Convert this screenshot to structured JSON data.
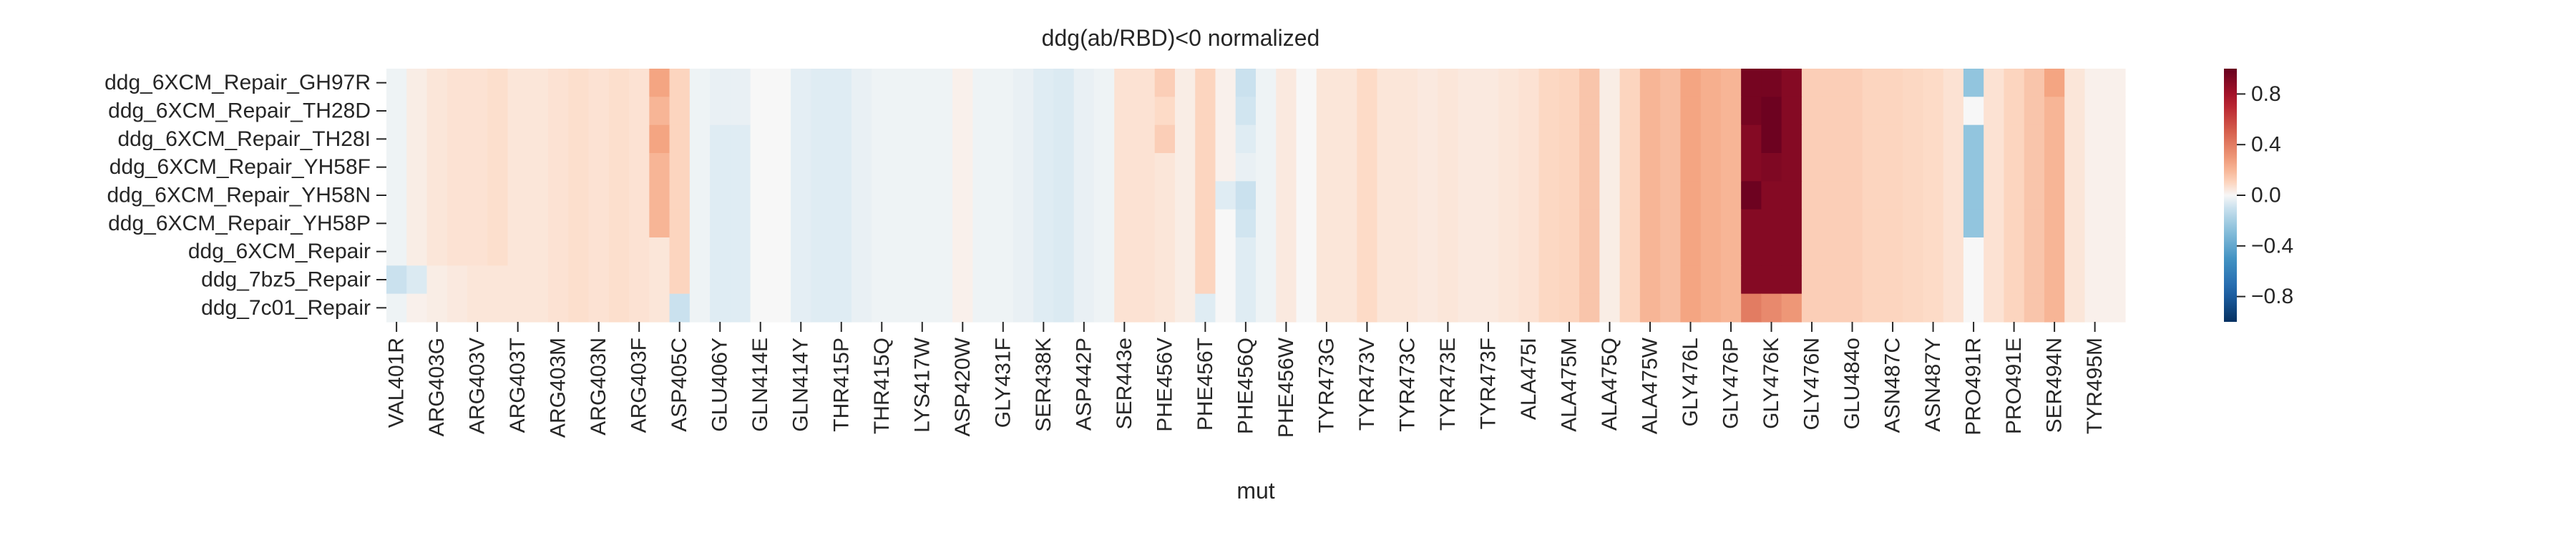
{
  "chart_data": {
    "type": "heatmap",
    "title": "ddg(ab/RBD)<0 normalized",
    "xlabel": "mut",
    "ylabel": "",
    "rows": [
      "ddg_6XCM_Repair_GH97R",
      "ddg_6XCM_Repair_TH28D",
      "ddg_6XCM_Repair_TH28I",
      "ddg_6XCM_Repair_YH58F",
      "ddg_6XCM_Repair_YH58N",
      "ddg_6XCM_Repair_YH58P",
      "ddg_6XCM_Repair",
      "ddg_7bz5_Repair",
      "ddg_7c01_Repair"
    ],
    "x_tick_labels": [
      "VAL401R",
      "ARG403G",
      "ARG403V",
      "ARG403T",
      "ARG403M",
      "ARG403N",
      "ARG403F",
      "ASP405C",
      "GLU406Y",
      "GLN414E",
      "GLN414Y",
      "THR415P",
      "THR415Q",
      "LYS417W",
      "ASP420W",
      "GLY431F",
      "SER438K",
      "ASP442P",
      "SER443e",
      "PHE456V",
      "PHE456T",
      "PHE456Q",
      "PHE456W",
      "TYR473G",
      "TYR473V",
      "TYR473C",
      "TYR473E",
      "TYR473F",
      "ALA475I",
      "ALA475M",
      "ALA475Q",
      "ALA475W",
      "GLY476L",
      "GLY476P",
      "GLY476K",
      "GLY476N",
      "GLU484o",
      "ASN487C",
      "ASN487Y",
      "PRO491R",
      "PRO491E",
      "SER494N",
      "TYR495M"
    ],
    "n_columns": 86,
    "tick_every": 2,
    "colorbar": {
      "cmap": "RdBu_r",
      "vmin": -1.0,
      "vmax": 1.0,
      "ticks": [
        0.8,
        0.4,
        0.0,
        -0.4,
        -0.8
      ],
      "tick_labels": [
        "0.8",
        "0.4",
        "0.0",
        "−0.4",
        "−0.8"
      ]
    },
    "values": [
      [
        -0.02,
        0.03,
        0.05,
        0.06,
        0.06,
        0.07,
        0.05,
        0.05,
        0.06,
        0.07,
        0.06,
        0.07,
        0.06,
        0.25,
        0.1,
        -0.02,
        -0.03,
        -0.03,
        0.0,
        0.0,
        -0.04,
        -0.05,
        -0.05,
        -0.03,
        -0.02,
        -0.02,
        -0.02,
        -0.02,
        0.02,
        -0.02,
        -0.02,
        -0.03,
        -0.05,
        -0.06,
        -0.03,
        -0.02,
        0.06,
        0.06,
        0.12,
        0.03,
        0.1,
        0.02,
        -0.1,
        -0.02,
        0.04,
        0.0,
        0.05,
        0.05,
        0.08,
        0.05,
        0.05,
        0.04,
        0.05,
        0.04,
        0.04,
        0.05,
        0.06,
        0.09,
        0.1,
        0.15,
        0.03,
        0.1,
        0.2,
        0.17,
        0.25,
        0.22,
        0.2,
        0.95,
        0.95,
        0.9,
        0.12,
        0.12,
        0.12,
        0.1,
        0.1,
        0.09,
        0.08,
        0.06,
        -0.25,
        0.06,
        0.1,
        0.15,
        0.25,
        0.05,
        0.02,
        0.02
      ],
      [
        -0.02,
        0.03,
        0.05,
        0.06,
        0.06,
        0.07,
        0.05,
        0.05,
        0.06,
        0.07,
        0.06,
        0.07,
        0.06,
        0.2,
        0.1,
        -0.02,
        -0.03,
        -0.03,
        0.0,
        0.0,
        -0.04,
        -0.05,
        -0.05,
        -0.03,
        -0.02,
        -0.02,
        -0.02,
        -0.02,
        0.02,
        -0.02,
        -0.02,
        -0.03,
        -0.05,
        -0.06,
        -0.03,
        -0.02,
        0.06,
        0.06,
        0.08,
        0.03,
        0.1,
        0.02,
        -0.08,
        -0.02,
        0.04,
        0.0,
        0.05,
        0.05,
        0.08,
        0.05,
        0.05,
        0.04,
        0.05,
        0.04,
        0.04,
        0.05,
        0.06,
        0.09,
        0.1,
        0.15,
        0.03,
        0.1,
        0.2,
        0.17,
        0.25,
        0.22,
        0.2,
        0.95,
        0.98,
        0.9,
        0.12,
        0.12,
        0.12,
        0.1,
        0.1,
        0.09,
        0.08,
        0.06,
        0.0,
        0.06,
        0.1,
        0.15,
        0.2,
        0.05,
        0.02,
        0.02
      ],
      [
        -0.02,
        0.03,
        0.05,
        0.06,
        0.06,
        0.07,
        0.05,
        0.05,
        0.06,
        0.07,
        0.06,
        0.07,
        0.06,
        0.25,
        0.1,
        -0.02,
        -0.05,
        -0.05,
        0.0,
        0.0,
        -0.04,
        -0.05,
        -0.05,
        -0.03,
        -0.02,
        -0.02,
        -0.02,
        -0.02,
        0.02,
        -0.02,
        -0.02,
        -0.03,
        -0.05,
        -0.06,
        -0.03,
        -0.02,
        0.06,
        0.06,
        0.12,
        0.03,
        0.1,
        0.02,
        -0.05,
        -0.02,
        0.04,
        0.0,
        0.05,
        0.05,
        0.08,
        0.05,
        0.05,
        0.04,
        0.05,
        0.04,
        0.04,
        0.05,
        0.06,
        0.09,
        0.1,
        0.15,
        0.03,
        0.1,
        0.2,
        0.17,
        0.25,
        0.22,
        0.2,
        0.9,
        0.98,
        0.9,
        0.12,
        0.12,
        0.12,
        0.1,
        0.1,
        0.09,
        0.08,
        0.06,
        -0.25,
        0.06,
        0.1,
        0.15,
        0.2,
        0.05,
        0.02,
        0.02
      ],
      [
        -0.02,
        0.03,
        0.05,
        0.06,
        0.06,
        0.07,
        0.05,
        0.05,
        0.06,
        0.07,
        0.06,
        0.07,
        0.06,
        0.2,
        0.1,
        -0.02,
        -0.05,
        -0.05,
        0.0,
        0.0,
        -0.04,
        -0.05,
        -0.05,
        -0.03,
        -0.02,
        -0.02,
        -0.02,
        -0.02,
        0.02,
        -0.02,
        -0.02,
        -0.03,
        -0.05,
        -0.06,
        -0.03,
        -0.02,
        0.06,
        0.06,
        0.05,
        0.03,
        0.1,
        0.02,
        -0.03,
        -0.02,
        0.04,
        0.0,
        0.05,
        0.05,
        0.08,
        0.05,
        0.05,
        0.04,
        0.05,
        0.04,
        0.04,
        0.05,
        0.06,
        0.09,
        0.1,
        0.15,
        0.03,
        0.1,
        0.2,
        0.17,
        0.25,
        0.22,
        0.2,
        0.9,
        0.92,
        0.9,
        0.12,
        0.12,
        0.12,
        0.1,
        0.1,
        0.09,
        0.08,
        0.06,
        -0.25,
        0.06,
        0.1,
        0.15,
        0.2,
        0.05,
        0.02,
        0.02
      ],
      [
        -0.02,
        0.03,
        0.05,
        0.06,
        0.06,
        0.07,
        0.05,
        0.05,
        0.06,
        0.07,
        0.06,
        0.07,
        0.06,
        0.2,
        0.1,
        -0.02,
        -0.05,
        -0.05,
        0.0,
        0.0,
        -0.04,
        -0.05,
        -0.05,
        -0.03,
        -0.02,
        -0.02,
        -0.02,
        -0.02,
        0.02,
        -0.02,
        -0.02,
        -0.03,
        -0.05,
        -0.06,
        -0.03,
        -0.02,
        0.06,
        0.06,
        0.05,
        0.03,
        0.1,
        -0.05,
        -0.1,
        -0.02,
        0.04,
        0.0,
        0.05,
        0.05,
        0.08,
        0.05,
        0.05,
        0.04,
        0.05,
        0.04,
        0.04,
        0.05,
        0.06,
        0.09,
        0.1,
        0.15,
        0.03,
        0.1,
        0.2,
        0.17,
        0.25,
        0.22,
        0.2,
        0.98,
        0.9,
        0.9,
        0.12,
        0.12,
        0.12,
        0.1,
        0.1,
        0.09,
        0.08,
        0.06,
        -0.25,
        0.06,
        0.1,
        0.15,
        0.2,
        0.05,
        0.02,
        0.02
      ],
      [
        -0.02,
        0.03,
        0.05,
        0.06,
        0.06,
        0.07,
        0.05,
        0.05,
        0.06,
        0.07,
        0.06,
        0.07,
        0.06,
        0.2,
        0.1,
        -0.02,
        -0.05,
        -0.05,
        0.0,
        0.0,
        -0.04,
        -0.05,
        -0.05,
        -0.03,
        -0.02,
        -0.02,
        -0.02,
        -0.02,
        0.02,
        -0.02,
        -0.02,
        -0.03,
        -0.05,
        -0.06,
        -0.03,
        -0.02,
        0.06,
        0.06,
        0.05,
        0.03,
        0.1,
        0.0,
        -0.08,
        -0.02,
        0.04,
        0.0,
        0.05,
        0.05,
        0.08,
        0.05,
        0.05,
        0.04,
        0.05,
        0.04,
        0.04,
        0.05,
        0.06,
        0.09,
        0.1,
        0.15,
        0.03,
        0.1,
        0.2,
        0.17,
        0.25,
        0.22,
        0.2,
        0.9,
        0.9,
        0.9,
        0.12,
        0.12,
        0.12,
        0.1,
        0.1,
        0.09,
        0.08,
        0.06,
        -0.25,
        0.06,
        0.1,
        0.15,
        0.2,
        0.05,
        0.02,
        0.02
      ],
      [
        -0.02,
        0.03,
        0.05,
        0.06,
        0.06,
        0.07,
        0.05,
        0.05,
        0.06,
        0.07,
        0.06,
        0.07,
        0.06,
        0.05,
        0.1,
        -0.02,
        -0.05,
        -0.05,
        0.0,
        0.0,
        -0.04,
        -0.05,
        -0.05,
        -0.03,
        -0.02,
        -0.02,
        -0.02,
        -0.02,
        0.02,
        -0.02,
        -0.02,
        -0.03,
        -0.05,
        -0.06,
        -0.03,
        -0.02,
        0.06,
        0.06,
        0.05,
        0.03,
        0.1,
        0.0,
        -0.05,
        -0.02,
        0.04,
        0.0,
        0.05,
        0.05,
        0.08,
        0.05,
        0.05,
        0.04,
        0.05,
        0.04,
        0.04,
        0.05,
        0.06,
        0.09,
        0.1,
        0.15,
        0.03,
        0.1,
        0.2,
        0.17,
        0.25,
        0.22,
        0.2,
        0.9,
        0.9,
        0.9,
        0.12,
        0.12,
        0.12,
        0.1,
        0.1,
        0.09,
        0.08,
        0.06,
        0.0,
        0.06,
        0.1,
        0.15,
        0.2,
        0.05,
        0.02,
        0.02
      ],
      [
        -0.1,
        -0.06,
        0.03,
        0.04,
        0.05,
        0.05,
        0.05,
        0.05,
        0.06,
        0.07,
        0.06,
        0.07,
        0.06,
        0.05,
        0.1,
        -0.02,
        -0.05,
        -0.05,
        0.0,
        0.0,
        -0.04,
        -0.05,
        -0.05,
        -0.03,
        -0.02,
        -0.02,
        -0.02,
        -0.02,
        0.02,
        -0.02,
        -0.02,
        -0.03,
        -0.05,
        -0.06,
        -0.03,
        -0.02,
        0.06,
        0.06,
        0.05,
        0.03,
        0.1,
        0.0,
        -0.05,
        -0.02,
        0.04,
        0.0,
        0.05,
        0.05,
        0.08,
        0.05,
        0.05,
        0.04,
        0.05,
        0.04,
        0.04,
        0.05,
        0.06,
        0.09,
        0.1,
        0.15,
        0.03,
        0.1,
        0.2,
        0.17,
        0.25,
        0.22,
        0.2,
        0.9,
        0.9,
        0.9,
        0.12,
        0.12,
        0.12,
        0.1,
        0.1,
        0.09,
        0.08,
        0.06,
        0.0,
        0.06,
        0.1,
        0.15,
        0.2,
        0.05,
        0.02,
        0.02
      ],
      [
        -0.02,
        0.02,
        0.03,
        0.04,
        0.05,
        0.05,
        0.05,
        0.05,
        0.06,
        0.07,
        0.06,
        0.07,
        0.06,
        0.05,
        -0.1,
        -0.02,
        -0.05,
        -0.05,
        0.0,
        0.0,
        -0.04,
        -0.05,
        -0.05,
        -0.03,
        -0.02,
        -0.02,
        -0.02,
        -0.02,
        0.02,
        -0.02,
        -0.02,
        -0.03,
        -0.05,
        -0.06,
        -0.03,
        -0.02,
        0.06,
        0.06,
        0.05,
        0.03,
        -0.05,
        0.0,
        -0.05,
        -0.02,
        0.04,
        0.0,
        0.05,
        0.05,
        0.08,
        0.05,
        0.05,
        0.04,
        0.05,
        0.04,
        0.04,
        0.05,
        0.06,
        0.09,
        0.1,
        0.15,
        0.03,
        0.1,
        0.2,
        0.17,
        0.25,
        0.22,
        0.2,
        0.4,
        0.35,
        0.3,
        0.12,
        0.12,
        0.12,
        0.1,
        0.1,
        0.09,
        0.08,
        0.06,
        0.0,
        0.06,
        0.1,
        0.15,
        0.2,
        0.05,
        0.02,
        0.02
      ]
    ]
  }
}
